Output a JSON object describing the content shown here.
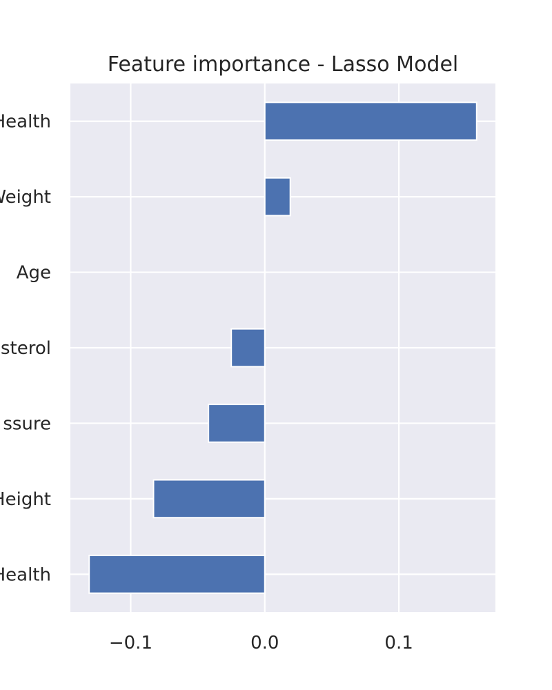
{
  "chart_data": {
    "type": "bar",
    "orientation": "horizontal",
    "title": "Feature importance - Lasso Model",
    "xlabel": "",
    "ylabel": "",
    "categories": [
      "Health",
      "Weight",
      "Age",
      "sterol",
      "ssure",
      "Height",
      "Health"
    ],
    "values": [
      0.158,
      0.019,
      0.0,
      -0.025,
      -0.042,
      -0.083,
      -0.131
    ],
    "xlim": [
      -0.145,
      0.172
    ],
    "xticks": [
      -0.1,
      0.0,
      0.1
    ],
    "xtick_labels": [
      "−0.1",
      "0.0",
      "0.1"
    ],
    "grid": true,
    "bar_color": "#4c72b0",
    "plot_background": "#eaeaf2"
  }
}
